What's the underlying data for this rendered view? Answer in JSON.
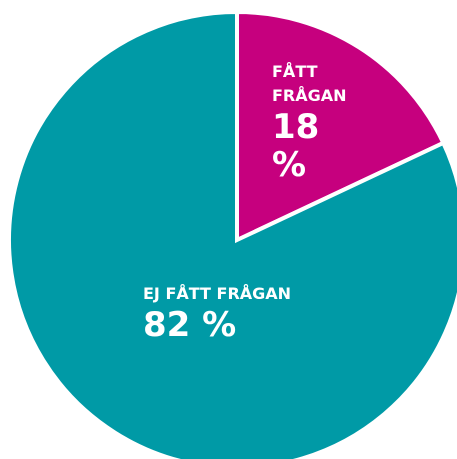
{
  "chart_data": {
    "type": "pie",
    "categories": [
      "FÅTT FRÅGAN",
      "EJ FÅTT FRÅGAN"
    ],
    "values": [
      18,
      82
    ],
    "value_labels": [
      "18 %",
      "82 %"
    ],
    "colors": [
      "#c6007e",
      "#009aa6"
    ]
  }
}
